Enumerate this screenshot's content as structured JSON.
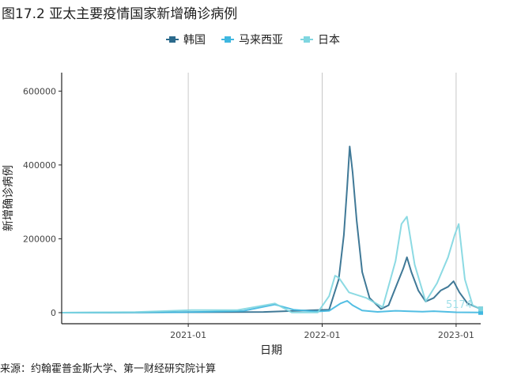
{
  "title": "图17.2 亚太主要疫情国家新增确诊病例",
  "source": "来源：约翰霍普金斯大学、第一财经研究院计算",
  "colors": {
    "korea": "#2b6a8c",
    "malaysia": "#3fb7e0",
    "japan": "#7fd6e0",
    "grid": "#c8c8c8",
    "axis": "#222222"
  },
  "chart_data": {
    "type": "line",
    "title": "亚太主要疫情国家新增确诊病例",
    "xlabel": "日期",
    "ylabel": "新增确诊病例",
    "xlim": [
      "2020-01-22",
      "2023-03-09"
    ],
    "ylim": [
      -30000,
      650000
    ],
    "x_ticks": [
      "2021-01",
      "2022-01",
      "2023-01"
    ],
    "y_ticks": [
      0,
      200000,
      400000,
      600000
    ],
    "y_tick_labels": [
      "0",
      "200000",
      "400000",
      "600000"
    ],
    "grid": "vertical-major",
    "legend_position": "top",
    "end_label": "5174",
    "series": [
      {
        "name": "韩国",
        "key": "korea",
        "marker": "square",
        "x": [
          "2020-01-22",
          "2020-06-01",
          "2020-12-25",
          "2021-07-25",
          "2021-12-15",
          "2022-01-20",
          "2022-02-15",
          "2022-03-01",
          "2022-03-10",
          "2022-03-17",
          "2022-03-25",
          "2022-04-05",
          "2022-04-20",
          "2022-05-10",
          "2022-06-10",
          "2022-07-01",
          "2022-07-25",
          "2022-08-10",
          "2022-08-20",
          "2022-09-01",
          "2022-09-20",
          "2022-10-10",
          "2022-11-01",
          "2022-11-20",
          "2022-12-10",
          "2022-12-25",
          "2023-01-10",
          "2023-02-01",
          "2023-03-09"
        ],
        "values": [
          0,
          50,
          1200,
          1800,
          7000,
          8000,
          90000,
          210000,
          340000,
          450000,
          380000,
          250000,
          110000,
          40000,
          10000,
          20000,
          80000,
          120000,
          150000,
          110000,
          60000,
          30000,
          40000,
          60000,
          70000,
          85000,
          55000,
          25000,
          10000
        ]
      },
      {
        "name": "马来西亚",
        "key": "malaysia",
        "marker": "square",
        "x": [
          "2020-01-22",
          "2020-12-01",
          "2021-03-01",
          "2021-06-01",
          "2021-08-25",
          "2021-10-15",
          "2021-12-15",
          "2022-01-20",
          "2022-02-20",
          "2022-03-10",
          "2022-03-25",
          "2022-04-20",
          "2022-06-01",
          "2022-07-20",
          "2022-08-20",
          "2022-10-01",
          "2022-11-01",
          "2023-01-01",
          "2023-03-09"
        ],
        "values": [
          0,
          1000,
          2500,
          5000,
          22000,
          8000,
          3000,
          5000,
          25000,
          32000,
          20000,
          6000,
          2000,
          5000,
          4000,
          2500,
          4000,
          1000,
          500
        ]
      },
      {
        "name": "日本",
        "key": "japan",
        "marker": "square",
        "x": [
          "2020-01-22",
          "2020-08-10",
          "2021-01-10",
          "2021-05-15",
          "2021-08-25",
          "2021-10-10",
          "2021-12-20",
          "2022-01-20",
          "2022-02-05",
          "2022-02-15",
          "2022-03-15",
          "2022-05-01",
          "2022-06-15",
          "2022-07-20",
          "2022-08-05",
          "2022-08-20",
          "2022-09-10",
          "2022-10-10",
          "2022-11-10",
          "2022-12-10",
          "2022-12-28",
          "2023-01-08",
          "2023-01-25",
          "2023-02-15",
          "2023-03-09"
        ],
        "values": [
          0,
          1500,
          7000,
          7000,
          25000,
          500,
          500,
          45000,
          100000,
          95000,
          55000,
          40000,
          15000,
          140000,
          240000,
          260000,
          130000,
          30000,
          80000,
          150000,
          210000,
          240000,
          90000,
          20000,
          10000
        ]
      }
    ]
  }
}
